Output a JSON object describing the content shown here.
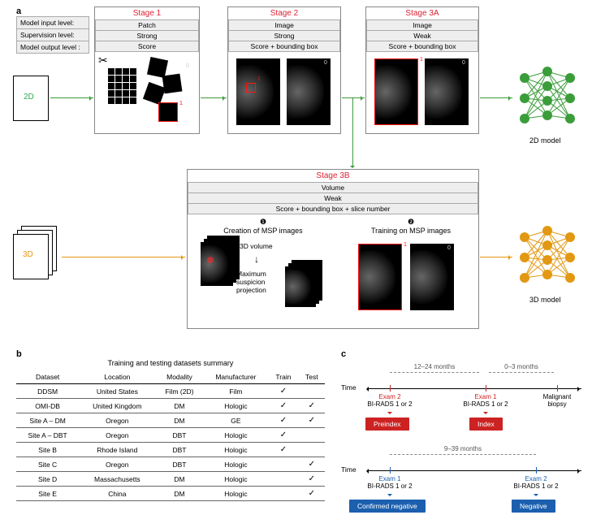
{
  "panel_labels": {
    "a": "a",
    "b": "b",
    "c": "c"
  },
  "a": {
    "kv_rows": {
      "input": "Model input level:",
      "supervision": "Supervision level:",
      "output": "Model output level :"
    },
    "input2d": "2D",
    "input3d": "3D",
    "stages": {
      "s1": {
        "title": "Stage 1",
        "input": "Patch",
        "sup": "Strong",
        "out": "Score"
      },
      "s2": {
        "title": "Stage 2",
        "input": "Image",
        "sup": "Strong",
        "out": "Score + bounding box"
      },
      "s3a": {
        "title": "Stage 3A",
        "input": "Image",
        "sup": "Weak",
        "out": "Score + bounding box"
      },
      "s3b": {
        "title": "Stage 3B",
        "input": "Volume",
        "sup": "Weak",
        "out": "Score + bounding box + slice number",
        "step1_num": "❶",
        "step1": "Creation of MSP images",
        "step2_num": "❷",
        "step2": "Training on MSP images",
        "vol": "3D volume",
        "msp_line1": "Maximum",
        "msp_line2": "suspicion",
        "msp_line3": "projection"
      }
    },
    "model2d": "2D model",
    "model3d": "3D model",
    "digits": {
      "one": "1",
      "zero": "0"
    },
    "colors": {
      "green": "#3a9d3a",
      "orange": "#e29812",
      "red": "#d23"
    }
  },
  "b": {
    "title": "Training and testing datasets summary",
    "columns": [
      "Dataset",
      "Location",
      "Modality",
      "Manufacturer",
      "Train",
      "Test"
    ],
    "rows": [
      {
        "ds": "DDSM",
        "loc": "United States",
        "mod": "Film (2D)",
        "man": "Film",
        "train": true,
        "test": false
      },
      {
        "ds": "OMI-DB",
        "loc": "United Kingdom",
        "mod": "DM",
        "man": "Hologic",
        "train": true,
        "test": true
      },
      {
        "ds": "Site A – DM",
        "loc": "Oregon",
        "mod": "DM",
        "man": "GE",
        "train": true,
        "test": true
      },
      {
        "ds": "Site A – DBT",
        "loc": "Oregon",
        "mod": "DBT",
        "man": "Hologic",
        "train": true,
        "test": false
      },
      {
        "ds": "Site B",
        "loc": "Rhode Island",
        "mod": "DBT",
        "man": "Hologic",
        "train": true,
        "test": false
      },
      {
        "ds": "Site C",
        "loc": "Oregon",
        "mod": "DBT",
        "man": "Hologic",
        "train": false,
        "test": true
      },
      {
        "ds": "Site D",
        "loc": "Massachusetts",
        "mod": "DM",
        "man": "Hologic",
        "train": false,
        "test": true
      },
      {
        "ds": "Site E",
        "loc": "China",
        "mod": "DM",
        "man": "Hologic",
        "train": false,
        "test": true
      }
    ],
    "check": "✓"
  },
  "c": {
    "time_label": "Time",
    "top": {
      "brk1": "12–24 months",
      "brk2": "0–3 months",
      "exam2": "Exam 2",
      "exam1": "Exam 1",
      "biopsy_l1": "Malignant",
      "biopsy_l2": "biopsy",
      "birads": "BI-RADS 1 or 2",
      "box_left": "Preindex",
      "box_right": "Index"
    },
    "bottom": {
      "brk1": "9–39 months",
      "exam1": "Exam 1",
      "exam2": "Exam 2",
      "birads": "BI-RADS 1 or 2",
      "box_left": "Confirmed negative",
      "box_right": "Negative"
    }
  }
}
